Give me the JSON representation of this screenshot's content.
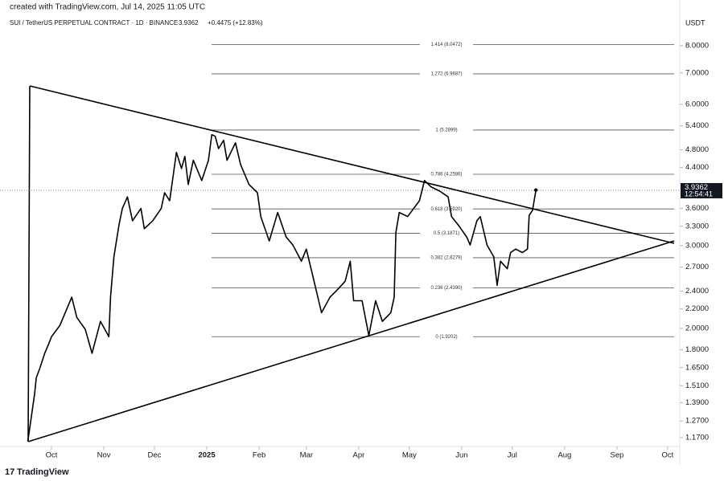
{
  "header": {
    "created": "created with TradingView.com, Jul 14, 2025 11:05 UTC",
    "symbol": "SUI / TetherUS PERPETUAL CONTRACT · 1D · BINANCE",
    "last": "3.9362",
    "change": "+0.4475 (+12.83%)"
  },
  "currency": "USDT",
  "brand": "TradingView",
  "chart_data": {
    "type": "line",
    "color": "#000000",
    "log_scale": true,
    "x": [
      -14,
      -12,
      -10,
      -9,
      -7,
      -4,
      -2,
      0,
      5,
      10,
      12,
      15,
      20,
      24,
      29,
      34,
      35,
      37,
      40,
      42,
      45,
      48,
      53,
      55,
      60,
      65,
      67,
      70,
      74,
      77,
      79,
      81,
      84,
      89,
      93,
      95,
      97,
      99,
      102,
      104,
      109,
      112,
      117,
      122,
      124,
      129,
      134,
      139,
      143,
      148,
      151,
      155,
      160,
      165,
      170,
      174,
      177,
      179,
      184,
      188,
      192,
      196,
      201,
      203,
      204,
      206,
      211,
      218,
      221,
      225,
      230,
      235,
      237,
      241,
      246,
      248,
      252,
      254,
      258,
      262,
      264,
      266,
      270,
      272,
      275,
      279,
      282,
      283,
      285,
      287
    ],
    "values": [
      1.15,
      1.29,
      1.45,
      1.57,
      1.64,
      1.77,
      1.84,
      1.92,
      2.03,
      2.24,
      2.33,
      2.11,
      1.99,
      1.77,
      2.07,
      1.92,
      2.33,
      2.84,
      3.32,
      3.6,
      3.81,
      3.39,
      3.6,
      3.26,
      3.39,
      3.6,
      3.89,
      3.74,
      4.74,
      4.38,
      4.65,
      4.05,
      4.56,
      4.13,
      4.56,
      5.17,
      5.13,
      4.83,
      5.03,
      4.56,
      4.97,
      4.47,
      4.05,
      3.89,
      3.46,
      3.07,
      3.53,
      3.13,
      3.01,
      2.78,
      2.95,
      2.57,
      2.16,
      2.33,
      2.43,
      2.52,
      2.78,
      2.29,
      2.29,
      1.93,
      2.29,
      2.07,
      2.16,
      2.33,
      3.2,
      3.53,
      3.46,
      3.74,
      4.13,
      4.0,
      3.92,
      3.81,
      3.46,
      3.32,
      3.13,
      3.01,
      3.39,
      3.46,
      3.01,
      2.84,
      2.47,
      2.78,
      2.68,
      2.9,
      2.95,
      2.9,
      2.95,
      3.48,
      3.57,
      3.94
    ],
    "xlim": [
      -30.5,
      372.2
    ],
    "xticks": [
      {
        "value": 0,
        "label": "Oct"
      },
      {
        "value": 31,
        "label": "Nov"
      },
      {
        "value": 61,
        "label": "Dec"
      },
      {
        "value": 92,
        "label": "2025"
      },
      {
        "value": 123,
        "label": "Feb"
      },
      {
        "value": 151,
        "label": "Mar"
      },
      {
        "value": 182,
        "label": "Apr"
      },
      {
        "value": 212,
        "label": "May"
      },
      {
        "value": 243,
        "label": "Jun"
      },
      {
        "value": 273,
        "label": "Jul"
      },
      {
        "value": 304,
        "label": "Aug"
      },
      {
        "value": 335,
        "label": "Sep"
      },
      {
        "value": 365,
        "label": "Oct"
      }
    ],
    "ylim": [
      1.125,
      8.72
    ],
    "yticks": [
      {
        "value": 8,
        "label": "8.0000"
      },
      {
        "value": 7,
        "label": "7.0000"
      },
      {
        "value": 6,
        "label": "6.0000"
      },
      {
        "value": 5.4,
        "label": "5.4000"
      },
      {
        "value": 4.8,
        "label": "4.8000"
      },
      {
        "value": 4.4,
        "label": "4.4000"
      },
      {
        "value": 3.6,
        "label": "3.6000"
      },
      {
        "value": 3.3,
        "label": "3.3000"
      },
      {
        "value": 3,
        "label": "3.0000"
      },
      {
        "value": 2.7,
        "label": "2.7000"
      },
      {
        "value": 2.4,
        "label": "2.4000"
      },
      {
        "value": 2.2,
        "label": "2.2000"
      },
      {
        "value": 2,
        "label": "2.0000"
      },
      {
        "value": 1.8,
        "label": "1.8000"
      },
      {
        "value": 1.65,
        "label": "1.6500"
      },
      {
        "value": 1.51,
        "label": "1.5100"
      },
      {
        "value": 1.39,
        "label": "1.3900"
      },
      {
        "value": 1.27,
        "label": "1.2700"
      },
      {
        "value": 1.17,
        "label": "1.1700"
      }
    ],
    "fib_levels": [
      {
        "value": 8.0472,
        "label": "1.414 (8.0472)"
      },
      {
        "value": 6.9687,
        "label": "1.272 (6.9687)"
      },
      {
        "value": 5.2899,
        "label": "1 (5.2899)"
      },
      {
        "value": 4.2586,
        "label": "0.786 (4.2586)"
      },
      {
        "value": 3.592,
        "label": "0.618 (3.5920)"
      },
      {
        "value": 3.1871,
        "label": "0.5 (3.1871)"
      },
      {
        "value": 2.8279,
        "label": "0.382 (2.8279)"
      },
      {
        "value": 2.439,
        "label": "0.236 (2.4390)"
      },
      {
        "value": 1.9202,
        "label": "0 (1.9202)"
      }
    ],
    "last_price": 3.9362,
    "countdown": "12:54:41"
  }
}
